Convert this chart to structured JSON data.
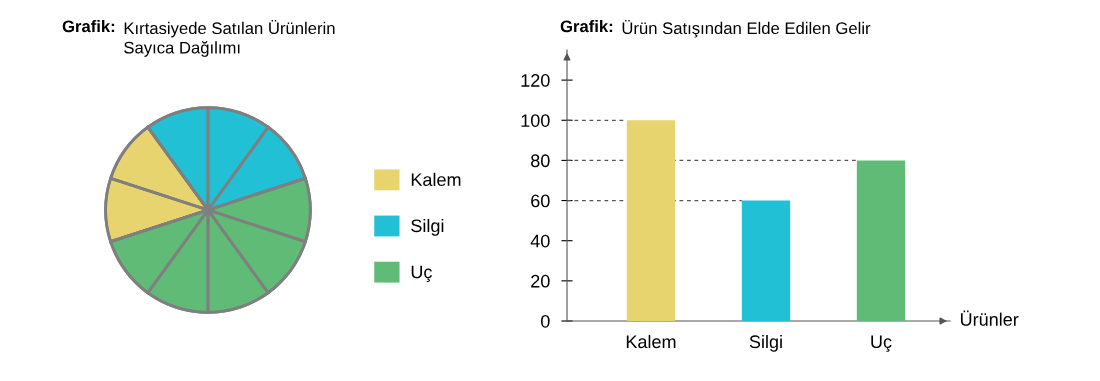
{
  "chart_data": [
    {
      "type": "pie",
      "title": "Grafik: Kırtasiyede Satılan Ürünlerin\nSayıca Dağılımı",
      "categories": [
        "Kalem",
        "Silgi",
        "Uç"
      ],
      "values": [
        20,
        30,
        50
      ],
      "colors": [
        "#e8d46e",
        "#22c0d4",
        "#5fbb75"
      ],
      "legend": "right"
    },
    {
      "type": "bar",
      "title": "Grafik: Ürün Satışından Elde Edilen Gelir",
      "xlabel": "Ürünler",
      "categories": [
        "Kalem",
        "Silgi",
        "Uç"
      ],
      "values": [
        100,
        60,
        80
      ],
      "colors": [
        "#e8d46e",
        "#22c0d4",
        "#5fbb75"
      ],
      "ylim": [
        0,
        135
      ],
      "yticks": [
        0,
        20,
        40,
        60,
        80,
        100,
        120
      ],
      "grid": false,
      "ref_lines": [
        {
          "axis": "y",
          "value": 100,
          "line_style": "dashed"
        },
        {
          "axis": "y",
          "value": 80,
          "line_style": "dashed"
        },
        {
          "axis": "y",
          "value": 60,
          "line_style": "dashed"
        }
      ]
    }
  ]
}
